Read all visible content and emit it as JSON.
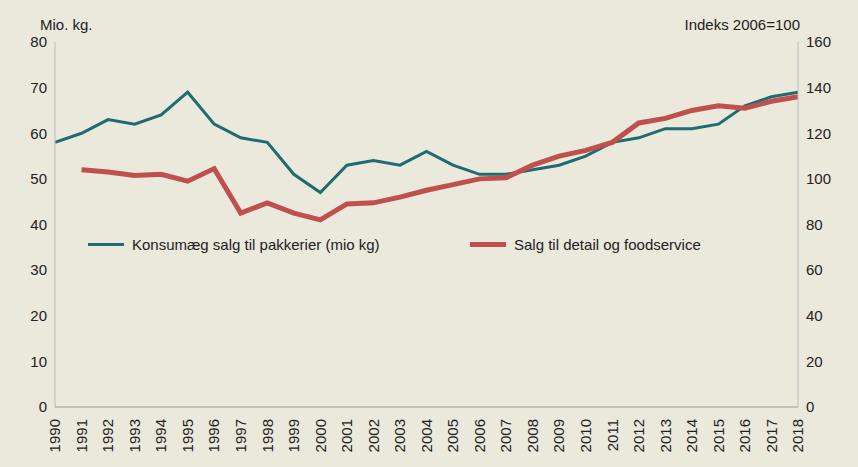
{
  "chart_data": {
    "type": "line",
    "y_label": "Mio. kg.",
    "y2_label": "Indeks 2006=100",
    "categories": [
      "1990",
      "1991",
      "1992",
      "1993",
      "1994",
      "1995",
      "1996",
      "1997",
      "1998",
      "1999",
      "2000",
      "2001",
      "2002",
      "2003",
      "2004",
      "2005",
      "2006",
      "2007",
      "2008",
      "2009",
      "2010",
      "2011",
      "2012",
      "2013",
      "2014",
      "2015",
      "2016",
      "2017",
      "2018"
    ],
    "series": [
      {
        "name": "Konsumæg salg til pakkerier (mio kg)",
        "color": "#1f6b72",
        "values": [
          58,
          60,
          63,
          62,
          64,
          69,
          62,
          59,
          58,
          51,
          47,
          53,
          54,
          53,
          56,
          53,
          51,
          51,
          52,
          53,
          55,
          58,
          59,
          61,
          61,
          62,
          66,
          68,
          69
        ]
      },
      {
        "name": "Salg til detail og foodservice",
        "color": "#c0504d",
        "axis": "y2",
        "values": [
          null,
          104,
          103,
          101.5,
          102,
          99,
          104.5,
          85,
          89.5,
          85,
          82,
          89,
          89.5,
          92,
          95,
          97.5,
          100,
          100.5,
          106,
          110,
          112.5,
          116,
          124.5,
          126.5,
          130,
          132,
          131,
          134,
          136
        ]
      }
    ],
    "ylim": [
      0,
      80
    ],
    "yticks": [
      0,
      10,
      20,
      30,
      40,
      50,
      60,
      70,
      80
    ],
    "y2lim": [
      0,
      160
    ],
    "y2ticks": [
      0,
      20,
      40,
      60,
      80,
      100,
      120,
      140,
      160
    ],
    "grid": false,
    "legend": "center"
  }
}
